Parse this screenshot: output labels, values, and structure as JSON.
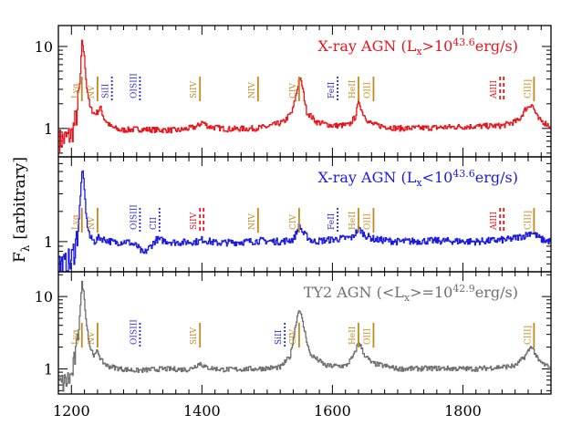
{
  "figure": {
    "ylabel": "F",
    "ylabel_sub": "λ",
    "ylabel_rest": "[arbitrary]"
  },
  "chart_data": [
    {
      "type": "line",
      "panel": "top",
      "title_parts": [
        "X-ray AGN (L",
        "x",
        ">10",
        "43.6",
        "erg/s)"
      ],
      "color": "#e8141b",
      "log_scale": true,
      "xlim": [
        1180,
        1935
      ],
      "ylim": [
        0.45,
        18
      ],
      "yticks": [
        1,
        10
      ],
      "ytick_labels": [
        "1",
        "10"
      ],
      "series": [
        {
          "x": [
            1180,
            1190,
            1200,
            1208,
            1213,
            1216,
            1219,
            1223,
            1228,
            1235,
            1240,
            1244,
            1250,
            1260,
            1275,
            1300,
            1330,
            1365,
            1392,
            1400,
            1410,
            1440,
            1480,
            1500,
            1525,
            1538,
            1545,
            1549,
            1553,
            1560,
            1575,
            1600,
            1625,
            1635,
            1640,
            1645,
            1655,
            1665,
            1700,
            1750,
            1800,
            1860,
            1885,
            1895,
            1905,
            1915,
            1935
          ],
          "y": [
            0.7,
            0.75,
            0.85,
            1.5,
            4.0,
            12.0,
            8.0,
            3.2,
            1.8,
            1.5,
            1.6,
            1.8,
            1.3,
            1.05,
            0.95,
            0.98,
            0.96,
            0.95,
            1.05,
            1.2,
            1.05,
            0.98,
            1.0,
            1.05,
            1.2,
            1.6,
            2.8,
            4.2,
            3.4,
            1.6,
            1.2,
            1.08,
            1.1,
            1.4,
            2.2,
            1.6,
            1.2,
            1.1,
            1.0,
            1.02,
            1.05,
            1.08,
            1.25,
            1.7,
            2.0,
            1.3,
            1.05
          ]
        }
      ],
      "lines": [
        {
          "label": "Lyα",
          "wave": 1216,
          "color": "#c28a1f",
          "style": "solid"
        },
        {
          "label": "NV",
          "wave": 1240,
          "color": "#c28a1f",
          "style": "solid"
        },
        {
          "label": "SiII",
          "wave": 1262,
          "color": "#2a2ad0",
          "style": "dotted"
        },
        {
          "label": "OISIII",
          "wave": 1305,
          "color": "#2a2ad0",
          "style": "dotted"
        },
        {
          "label": "SiIV",
          "wave": 1397,
          "color": "#c28a1f",
          "style": "solid"
        },
        {
          "label": "NIV",
          "wave": 1486,
          "color": "#c28a1f",
          "style": "solid"
        },
        {
          "label": "CIV",
          "wave": 1549,
          "color": "#c28a1f",
          "style": "solid"
        },
        {
          "label": "FeII",
          "wave": 1608,
          "color": "#2a2ad0",
          "style": "dotted"
        },
        {
          "label": "HeII",
          "wave": 1640,
          "color": "#c28a1f",
          "style": "solid"
        },
        {
          "label": "OIII",
          "wave": 1663,
          "color": "#c28a1f",
          "style": "solid"
        },
        {
          "label": "AlIII",
          "wave": 1857,
          "color": "#e8141b",
          "style": "dashed"
        },
        {
          "label": "CIII]",
          "wave": 1909,
          "color": "#c28a1f",
          "style": "solid"
        }
      ]
    },
    {
      "type": "line",
      "panel": "middle",
      "title_parts": [
        "X-ray AGN (L",
        "x",
        "<10",
        "43.6",
        "erg/s)"
      ],
      "color": "#1a1ae0",
      "log_scale": true,
      "xlim": [
        1180,
        1935
      ],
      "ylim": [
        0.5,
        7
      ],
      "yticks": [
        1
      ],
      "ytick_labels": [
        "1"
      ],
      "series": [
        {
          "x": [
            1180,
            1190,
            1200,
            1208,
            1213,
            1216,
            1219,
            1223,
            1228,
            1235,
            1242,
            1250,
            1265,
            1285,
            1300,
            1310,
            1330,
            1360,
            1395,
            1400,
            1420,
            1460,
            1490,
            1520,
            1540,
            1549,
            1555,
            1570,
            1600,
            1630,
            1640,
            1650,
            1665,
            1700,
            1760,
            1820,
            1870,
            1895,
            1905,
            1920,
            1935
          ],
          "y": [
            0.6,
            0.55,
            0.65,
            1.1,
            2.5,
            5.5,
            3.5,
            1.6,
            1.1,
            1.0,
            1.1,
            1.05,
            0.98,
            1.0,
            0.9,
            0.75,
            1.05,
            0.98,
            1.0,
            1.05,
            0.97,
            0.99,
            1.02,
            1.0,
            1.05,
            1.45,
            1.2,
            1.0,
            1.05,
            1.1,
            1.35,
            1.15,
            1.05,
            1.0,
            1.02,
            1.0,
            1.05,
            1.15,
            1.25,
            1.05,
            1.0
          ]
        }
      ],
      "lines": [
        {
          "label": "Lyα",
          "wave": 1216,
          "color": "#c28a1f",
          "style": "solid"
        },
        {
          "label": "NV",
          "wave": 1240,
          "color": "#c28a1f",
          "style": "solid"
        },
        {
          "label": "OISIII",
          "wave": 1305,
          "color": "#2a2ad0",
          "style": "dotted"
        },
        {
          "label": "CII",
          "wave": 1335,
          "color": "#2a2ad0",
          "style": "dotted"
        },
        {
          "label": "SiIV",
          "wave": 1397,
          "color": "#e8141b",
          "style": "dashed"
        },
        {
          "label": "NIV",
          "wave": 1486,
          "color": "#c28a1f",
          "style": "solid"
        },
        {
          "label": "CIV",
          "wave": 1549,
          "color": "#c28a1f",
          "style": "solid"
        },
        {
          "label": "FeII",
          "wave": 1608,
          "color": "#2a2ad0",
          "style": "dotted"
        },
        {
          "label": "HeII",
          "wave": 1640,
          "color": "#c28a1f",
          "style": "solid"
        },
        {
          "label": "OIII",
          "wave": 1663,
          "color": "#c28a1f",
          "style": "solid"
        },
        {
          "label": "AlIII",
          "wave": 1857,
          "color": "#e8141b",
          "style": "dashed"
        },
        {
          "label": "CIII]",
          "wave": 1909,
          "color": "#c28a1f",
          "style": "solid"
        }
      ]
    },
    {
      "type": "line",
      "panel": "bottom",
      "title_parts": [
        "TY2 AGN (<L",
        "x",
        ">=10",
        "42.9",
        "erg/s)"
      ],
      "color": "#6e6e6e",
      "log_scale": true,
      "xlim": [
        1180,
        1935
      ],
      "ylim": [
        0.45,
        22
      ],
      "yticks": [
        1,
        10
      ],
      "ytick_labels": [
        "1",
        "10"
      ],
      "xticks": [
        1200,
        1400,
        1600,
        1800
      ],
      "xtick_labels": [
        "1200",
        "1400",
        "1600",
        "1800"
      ],
      "series": [
        {
          "x": [
            1180,
            1190,
            1200,
            1208,
            1213,
            1216,
            1219,
            1223,
            1228,
            1235,
            1240,
            1245,
            1255,
            1275,
            1300,
            1340,
            1380,
            1397,
            1405,
            1430,
            1480,
            1520,
            1535,
            1545,
            1549,
            1555,
            1565,
            1590,
            1620,
            1632,
            1640,
            1648,
            1660,
            1700,
            1760,
            1820,
            1880,
            1895,
            1905,
            1915,
            1935
          ],
          "y": [
            0.6,
            0.65,
            0.8,
            2.0,
            7.0,
            16.0,
            10.0,
            4.0,
            2.0,
            1.5,
            1.8,
            1.3,
            1.1,
            1.0,
            0.95,
            1.0,
            0.98,
            1.2,
            1.05,
            0.98,
            1.0,
            1.05,
            1.5,
            5.0,
            7.0,
            4.0,
            1.6,
            1.1,
            1.1,
            1.5,
            2.4,
            1.6,
            1.2,
            1.0,
            1.02,
            1.0,
            1.1,
            1.5,
            2.1,
            1.3,
            1.0
          ]
        }
      ],
      "lines": [
        {
          "label": "Lyα",
          "wave": 1216,
          "color": "#c28a1f",
          "style": "solid"
        },
        {
          "label": "NV",
          "wave": 1240,
          "color": "#c28a1f",
          "style": "solid"
        },
        {
          "label": "OISIII",
          "wave": 1305,
          "color": "#2a2ad0",
          "style": "dotted"
        },
        {
          "label": "SiIV",
          "wave": 1397,
          "color": "#c28a1f",
          "style": "solid"
        },
        {
          "label": "SiII",
          "wave": 1527,
          "color": "#2a2ad0",
          "style": "dotted"
        },
        {
          "label": "CIV",
          "wave": 1549,
          "color": "#c28a1f",
          "style": "solid"
        },
        {
          "label": "HeII",
          "wave": 1640,
          "color": "#c28a1f",
          "style": "solid"
        },
        {
          "label": "OIII",
          "wave": 1663,
          "color": "#c28a1f",
          "style": "solid"
        },
        {
          "label": "CIII]",
          "wave": 1909,
          "color": "#c28a1f",
          "style": "solid"
        }
      ]
    }
  ]
}
